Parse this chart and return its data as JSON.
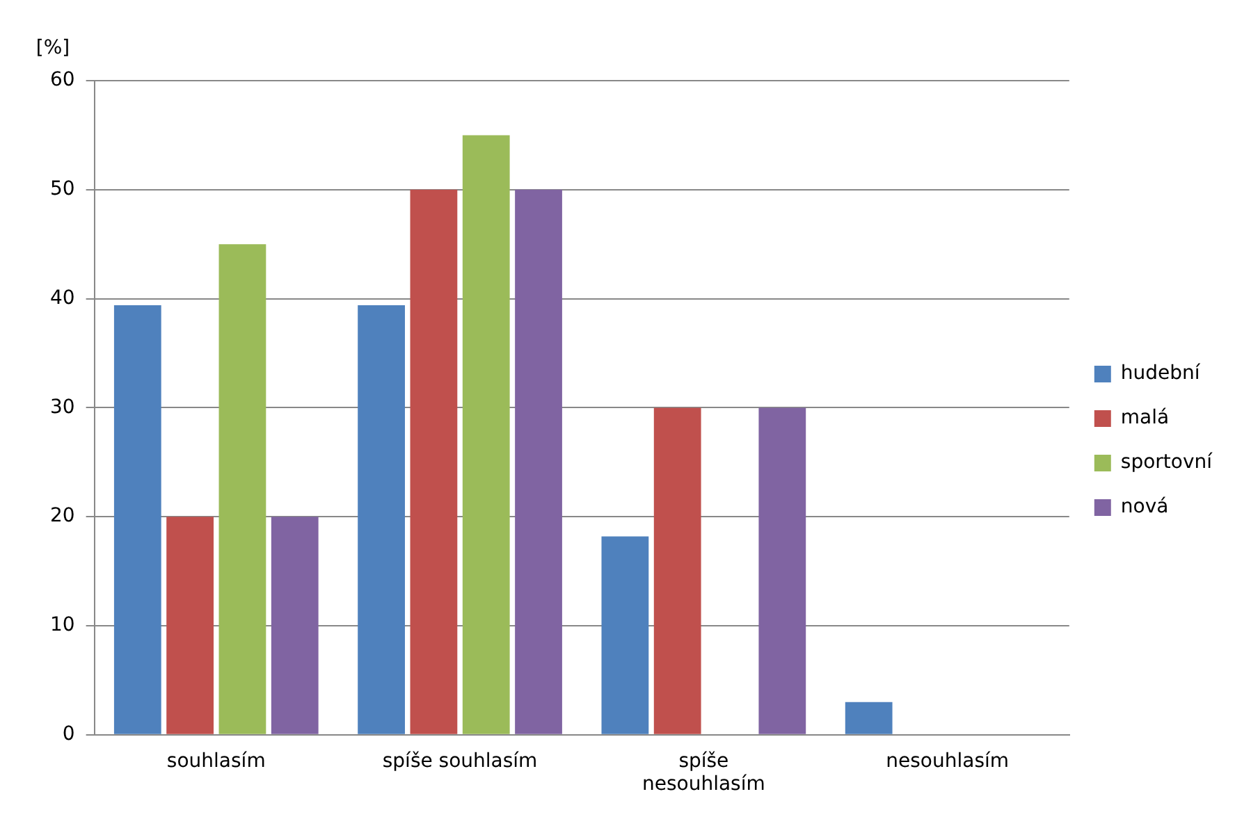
{
  "chart_data": {
    "type": "bar",
    "ylabel": "[%]",
    "categories": [
      "souhlasím",
      "spíše souhlasím",
      "spíše nesouhlasím",
      "nesouhlasím"
    ],
    "series": [
      {
        "name": "hudební",
        "color": "#4f81bd",
        "values": [
          39.4,
          39.4,
          18.2,
          3
        ]
      },
      {
        "name": "malá",
        "color": "#c0504d",
        "values": [
          20,
          50,
          30,
          0
        ]
      },
      {
        "name": "sportovní",
        "color": "#9bbb59",
        "values": [
          45,
          55,
          0,
          0
        ]
      },
      {
        "name": "nová",
        "color": "#8064a2",
        "values": [
          20,
          50,
          30,
          0
        ]
      }
    ],
    "ylim": [
      0,
      60
    ],
    "yticks": [
      0,
      10,
      20,
      30,
      40,
      50,
      60
    ],
    "grid": "y",
    "legend": "right"
  }
}
